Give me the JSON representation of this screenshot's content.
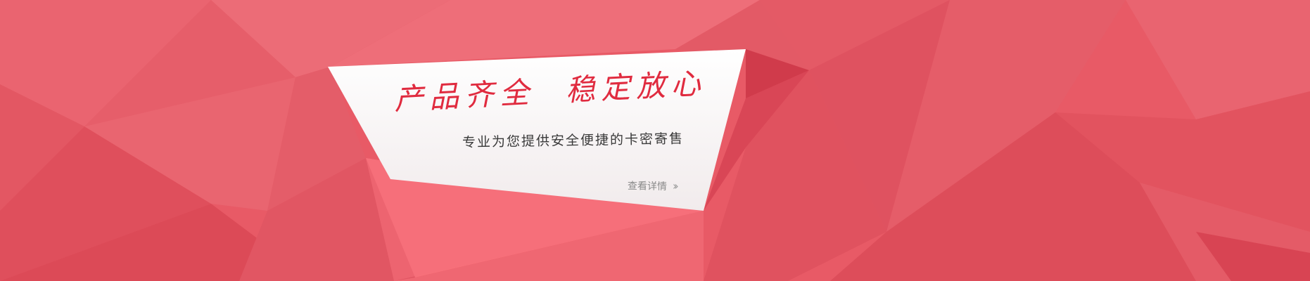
{
  "banner": {
    "headline_left": "产品齐全",
    "headline_right": "稳定放心",
    "subline": "专业为您提供安全便捷的卡密寄售",
    "more_link": "查看详情",
    "more_icon": "double-chevron-right-icon"
  },
  "colors": {
    "background": "#e85a66",
    "card": "#f8f5f5",
    "headline": "#e02b3f",
    "subline": "#3a3a3a",
    "link": "#8a8a8a"
  }
}
